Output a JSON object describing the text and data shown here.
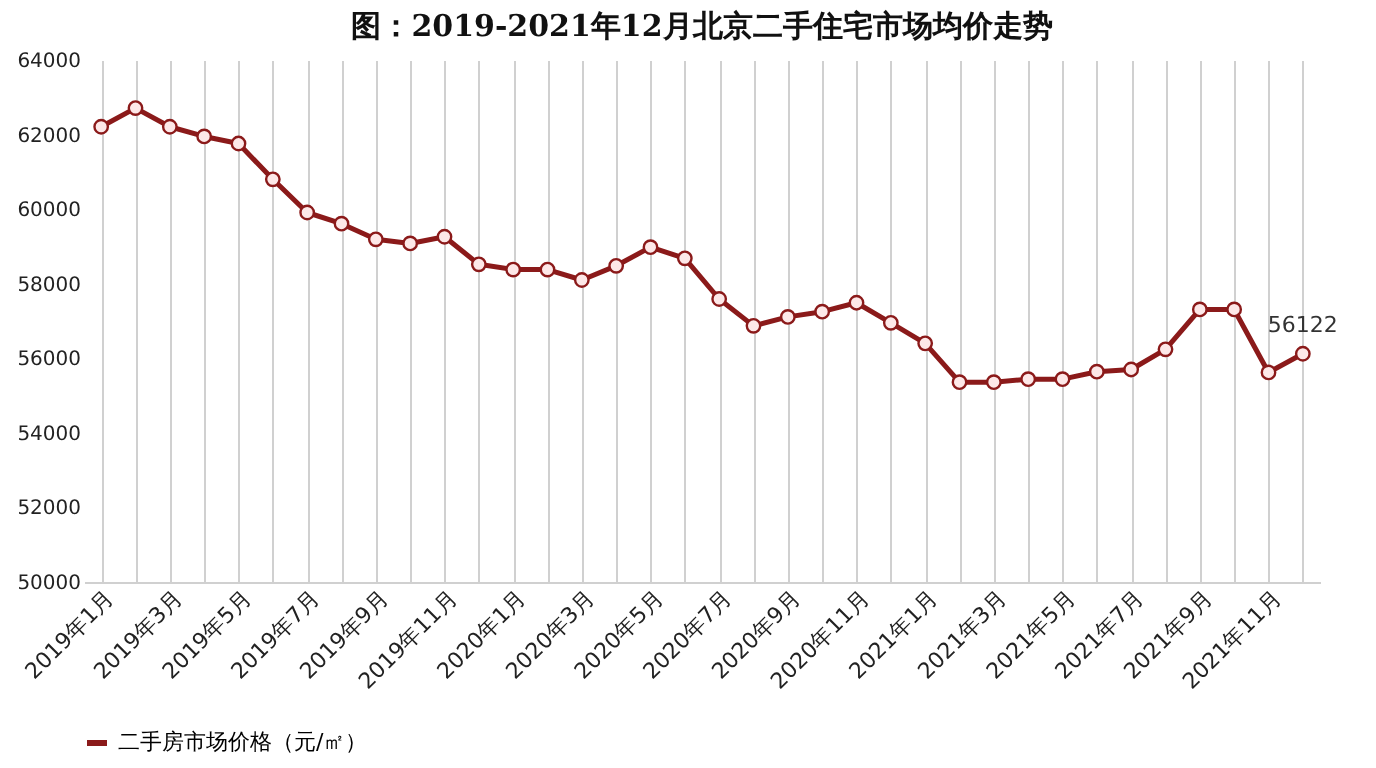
{
  "chart_data": {
    "type": "line",
    "title": "图：2019-2021年12月北京二手住宅市场均价走势",
    "categories": [
      "2019年1月",
      null,
      "2019年3月",
      null,
      "2019年5月",
      null,
      "2019年7月",
      null,
      "2019年9月",
      null,
      "2019年11月",
      null,
      "2020年1月",
      null,
      "2020年3月",
      null,
      "2020年5月",
      null,
      "2020年7月",
      null,
      "2020年9月",
      null,
      "2020年11月",
      null,
      "2021年1月",
      null,
      "2021年3月",
      null,
      "2021年5月",
      null,
      "2021年7月",
      null,
      "2021年9月",
      null,
      "2021年11月",
      null
    ],
    "series": [
      {
        "name": "二手房市场价格（元/㎡）",
        "color": "#8b1a1a",
        "values": [
          62210,
          62710,
          62210,
          61950,
          61760,
          60800,
          59910,
          59610,
          59190,
          59080,
          59260,
          58520,
          58380,
          58380,
          58100,
          58480,
          58980,
          58680,
          57590,
          56870,
          57110,
          57250,
          57490,
          56950,
          56400,
          55360,
          55360,
          55440,
          55440,
          55640,
          55700,
          56240,
          57310,
          57310,
          55620,
          56122
        ],
        "value_labels": [
          null,
          null,
          null,
          null,
          null,
          null,
          null,
          null,
          null,
          null,
          null,
          null,
          null,
          null,
          null,
          null,
          null,
          null,
          null,
          null,
          null,
          null,
          null,
          null,
          null,
          null,
          null,
          null,
          null,
          null,
          null,
          null,
          null,
          null,
          null,
          "56122"
        ]
      }
    ],
    "ylim": [
      50000,
      64000
    ],
    "yticks": [
      50000,
      52000,
      54000,
      56000,
      58000,
      60000,
      62000,
      64000
    ],
    "grid": "x",
    "legend": "bottom",
    "marker": "circle",
    "line_style": "solid"
  }
}
